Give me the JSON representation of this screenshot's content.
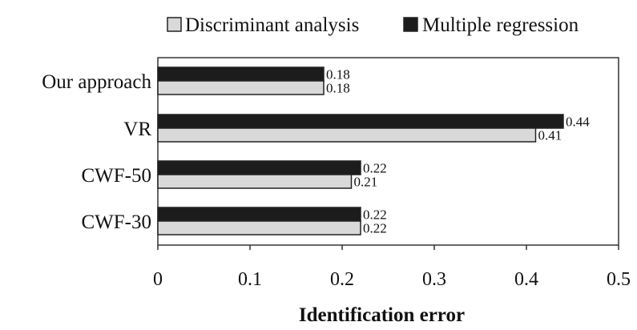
{
  "chart_data": {
    "type": "bar",
    "orientation": "horizontal",
    "categories": [
      "Our approach",
      "VR",
      "CWF-50",
      "CWF-30"
    ],
    "series": [
      {
        "name": "Discriminant analysis",
        "values": [
          0.18,
          0.41,
          0.21,
          0.22
        ],
        "value_labels": [
          "0.18",
          "0.41",
          "0.21",
          "0.22"
        ],
        "color": "#d9d9d9"
      },
      {
        "name": "Multiple regression",
        "values": [
          0.18,
          0.44,
          0.22,
          0.22
        ],
        "value_labels": [
          "0.18",
          "0.44",
          "0.22",
          "0.22"
        ],
        "color": "#1c1c1c"
      }
    ],
    "xlabel": "Identification error",
    "xlim": [
      0,
      0.5
    ],
    "xticks": [
      0,
      0.1,
      0.2,
      0.3,
      0.4,
      0.5
    ],
    "xtick_labels": [
      "0",
      "0.1",
      "0.2",
      "0.3",
      "0.4",
      "0.5"
    ],
    "grid": false,
    "legend_position": "top"
  }
}
